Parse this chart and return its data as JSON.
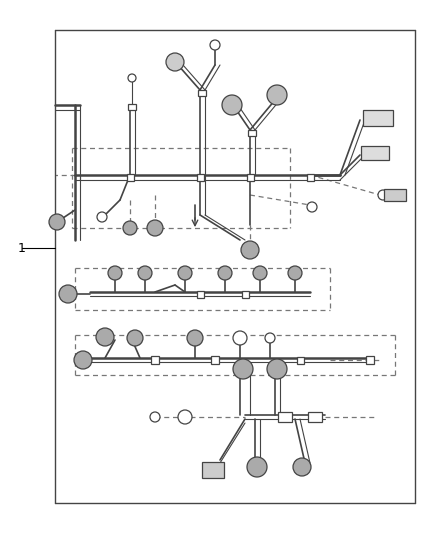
{
  "bg_color": "#ffffff",
  "line_color": "#444444",
  "dashed_color": "#777777",
  "fig_width": 4.38,
  "fig_height": 5.33,
  "label_1": "1"
}
